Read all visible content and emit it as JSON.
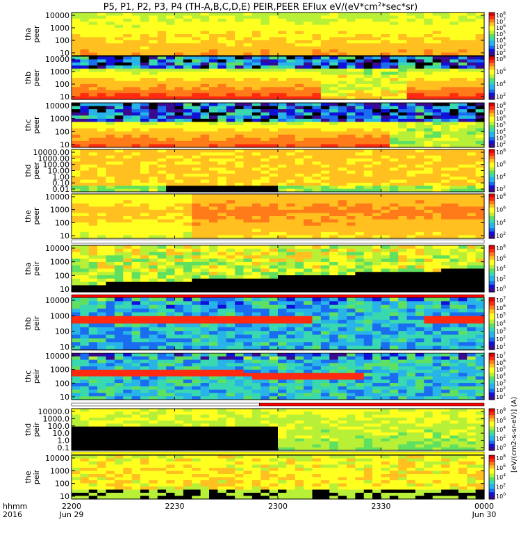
{
  "chart_data": {
    "type": "heatmap",
    "title": "P5, P1, P2, P3, P4 (TH-A,B,C,D,E) PEIR,PEER EFlux eV/(eV*cm",
    "title_sup": "2",
    "title_end": "*sec*sr)",
    "time_axis": {
      "label_line1": "hhmm",
      "label_line2": "2016",
      "ticks": [
        "2200",
        "2230",
        "2300",
        "2330",
        "0000"
      ],
      "date_labels": [
        "Jun 29",
        "",
        "",
        "",
        "Jun 30"
      ],
      "xlim": [
        "2016-06-29 22:00",
        "2016-06-30 00:00"
      ]
    },
    "colorbar_label": "[eV/(cm2-s-sr-eV)] (A)",
    "panels": [
      {
        "probe": "tha",
        "product": "peer",
        "ylabel_1": "tha",
        "ylabel_2": "peer",
        "yscale": "log",
        "yticks": [
          "10",
          "100",
          "1000",
          "10000"
        ],
        "cbar_ticks": [
          "10",
          "10",
          "10",
          "10",
          "10",
          "10",
          "10"
        ],
        "cbar_exps": [
          "2",
          "3",
          "4",
          "5",
          "6",
          "7",
          "8"
        ]
      },
      {
        "probe": "thb",
        "product": "peer",
        "ylabel_1": "thb",
        "ylabel_2": "peer",
        "yscale": "log",
        "yticks": [
          "10",
          "100",
          "1000",
          "10000"
        ],
        "cbar_ticks": [
          "10",
          "10",
          "10",
          "10"
        ],
        "cbar_exps": [
          "2",
          "4",
          "6",
          "8"
        ]
      },
      {
        "probe": "thc",
        "product": "peer",
        "ylabel_1": "thc",
        "ylabel_2": "peer",
        "yscale": "log",
        "yticks": [
          "10",
          "100",
          "1000",
          "10000"
        ],
        "cbar_ticks": [
          "10",
          "10",
          "10",
          "10",
          "10",
          "10",
          "10"
        ],
        "cbar_exps": [
          "2",
          "3",
          "4",
          "5",
          "6",
          "7",
          "8"
        ]
      },
      {
        "probe": "thd",
        "product": "peer",
        "ylabel_1": "thd",
        "ylabel_2": "peer",
        "yscale": "log",
        "yticks": [
          "0.01",
          "0.10",
          "1.00",
          "10.00",
          "100.00",
          "1000.00",
          "10000.00"
        ],
        "cbar_ticks": [
          "10",
          "10",
          "10",
          "10"
        ],
        "cbar_exps": [
          "2",
          "4",
          "6",
          "8"
        ]
      },
      {
        "probe": "the",
        "product": "peer",
        "ylabel_1": "the",
        "ylabel_2": "peer",
        "yscale": "log",
        "yticks": [
          "10",
          "100",
          "1000",
          "10000"
        ],
        "cbar_ticks": [
          "10",
          "10",
          "10",
          "10"
        ],
        "cbar_exps": [
          "2",
          "4",
          "6",
          "8"
        ]
      },
      {
        "probe": "tha",
        "product": "peir",
        "ylabel_1": "tha",
        "ylabel_2": "peir",
        "yscale": "log",
        "yticks": [
          "10",
          "100",
          "1000",
          "10000"
        ],
        "cbar_ticks": [
          "10",
          "10",
          "10",
          "10",
          "10"
        ],
        "cbar_exps": [
          "0",
          "2",
          "4",
          "6",
          "8"
        ]
      },
      {
        "probe": "thb",
        "product": "peir",
        "ylabel_1": "thb",
        "ylabel_2": "peir",
        "yscale": "log",
        "yticks": [
          "10",
          "100",
          "1000",
          "10000"
        ],
        "cbar_ticks": [
          "10",
          "10",
          "10",
          "10",
          "10",
          "10",
          "10"
        ],
        "cbar_exps": [
          "1",
          "2",
          "3",
          "4",
          "5",
          "6",
          "7"
        ]
      },
      {
        "probe": "thc",
        "product": "peir",
        "ylabel_1": "thc",
        "ylabel_2": "peir",
        "yscale": "log",
        "yticks": [
          "10",
          "100",
          "1000",
          "10000"
        ],
        "cbar_ticks": [
          "10",
          "10",
          "10",
          "10",
          "10",
          "10",
          "10"
        ],
        "cbar_exps": [
          "1",
          "2",
          "3",
          "4",
          "5",
          "6",
          "7"
        ]
      },
      {
        "probe": "thd",
        "product": "peir",
        "ylabel_1": "thd",
        "ylabel_2": "peir",
        "yscale": "log",
        "yticks": [
          "0.1",
          "1.0",
          "10.0",
          "100.0",
          "1000.0",
          "10000.0"
        ],
        "cbar_ticks": [
          "10",
          "10",
          "10",
          "10",
          "10"
        ],
        "cbar_exps": [
          "0",
          "2",
          "4",
          "6",
          "8"
        ]
      },
      {
        "probe": "the",
        "product": "peir",
        "ylabel_1": "the",
        "ylabel_2": "peir",
        "yscale": "log",
        "yticks": [
          "10",
          "100",
          "1000",
          "10000"
        ],
        "cbar_ticks": [
          "10",
          "10",
          "10",
          "10",
          "10"
        ],
        "cbar_exps": [
          "0",
          "2",
          "4",
          "6",
          "8"
        ]
      }
    ],
    "colormap": [
      "#000000",
      "#3a0a90",
      "#1010d8",
      "#1a6cf0",
      "#28b4e8",
      "#38d8b0",
      "#60e060",
      "#b8f038",
      "#ffff20",
      "#ffc020",
      "#ff7a18",
      "#ff2a10",
      "#e00000"
    ],
    "flag_bar_colors": {
      "white": "#ffffff",
      "red": "#ff0000",
      "yellow": "#ffff00",
      "black": "#000000"
    }
  }
}
